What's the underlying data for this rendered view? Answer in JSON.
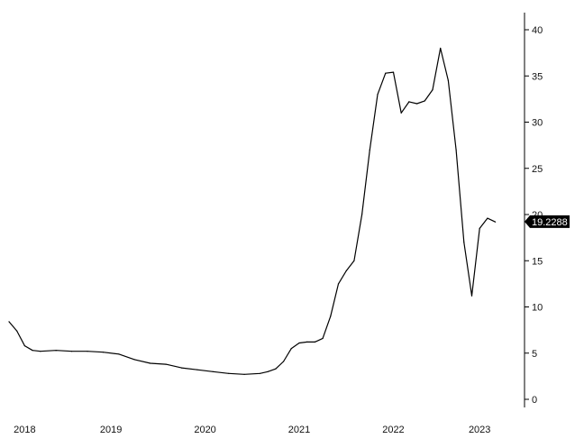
{
  "chart_data": {
    "type": "line",
    "title": "",
    "xlabel": "",
    "ylabel": "",
    "ylim": [
      0,
      40
    ],
    "xlim": [
      "2017-12",
      "2023-04"
    ],
    "y_ticks": [
      0,
      5,
      10,
      15,
      20,
      25,
      30,
      35,
      40
    ],
    "x_ticks": [
      {
        "label": "2018",
        "x": "2018-02"
      },
      {
        "label": "2019",
        "x": "2019-01"
      },
      {
        "label": "2020",
        "x": "2020-01"
      },
      {
        "label": "2021",
        "x": "2021-01"
      },
      {
        "label": "2022",
        "x": "2022-01"
      },
      {
        "label": "2023",
        "x": "2022-12"
      }
    ],
    "y_axis_side": "right",
    "grid": false,
    "last_value_label": "19.2288",
    "series": [
      {
        "color": "#000000",
        "points": [
          [
            "2017-12",
            8.4
          ],
          [
            "2018-01",
            7.4
          ],
          [
            "2018-02",
            5.8
          ],
          [
            "2018-03",
            5.3
          ],
          [
            "2018-04",
            5.2
          ],
          [
            "2018-06",
            5.3
          ],
          [
            "2018-08",
            5.2
          ],
          [
            "2018-10",
            5.2
          ],
          [
            "2018-12",
            5.1
          ],
          [
            "2019-02",
            4.9
          ],
          [
            "2019-04",
            4.3
          ],
          [
            "2019-06",
            3.9
          ],
          [
            "2019-08",
            3.8
          ],
          [
            "2019-10",
            3.4
          ],
          [
            "2019-12",
            3.2
          ],
          [
            "2020-02",
            3.0
          ],
          [
            "2020-04",
            2.8
          ],
          [
            "2020-06",
            2.7
          ],
          [
            "2020-08",
            2.8
          ],
          [
            "2020-09",
            3.0
          ],
          [
            "2020-10",
            3.3
          ],
          [
            "2020-11",
            4.1
          ],
          [
            "2020-12",
            5.5
          ],
          [
            "2021-01",
            6.1
          ],
          [
            "2021-02",
            6.2
          ],
          [
            "2021-03",
            6.2
          ],
          [
            "2021-04",
            6.6
          ],
          [
            "2021-05",
            9.0
          ],
          [
            "2021-06",
            12.5
          ],
          [
            "2021-07",
            13.9
          ],
          [
            "2021-08",
            15.0
          ],
          [
            "2021-09",
            20.0
          ],
          [
            "2021-10",
            27.0
          ],
          [
            "2021-11",
            33.0
          ],
          [
            "2021-12",
            35.3
          ],
          [
            "2022-01",
            35.4
          ],
          [
            "2022-02",
            31.0
          ],
          [
            "2022-03",
            32.2
          ],
          [
            "2022-04",
            32.0
          ],
          [
            "2022-05",
            32.3
          ],
          [
            "2022-06",
            33.5
          ],
          [
            "2022-07",
            38.0
          ],
          [
            "2022-08",
            34.5
          ],
          [
            "2022-09",
            27.0
          ],
          [
            "2022-10",
            17.0
          ],
          [
            "2022-11",
            11.2
          ],
          [
            "2022-12",
            18.5
          ],
          [
            "2023-01",
            19.6
          ],
          [
            "2023-02",
            19.2
          ]
        ]
      }
    ]
  }
}
